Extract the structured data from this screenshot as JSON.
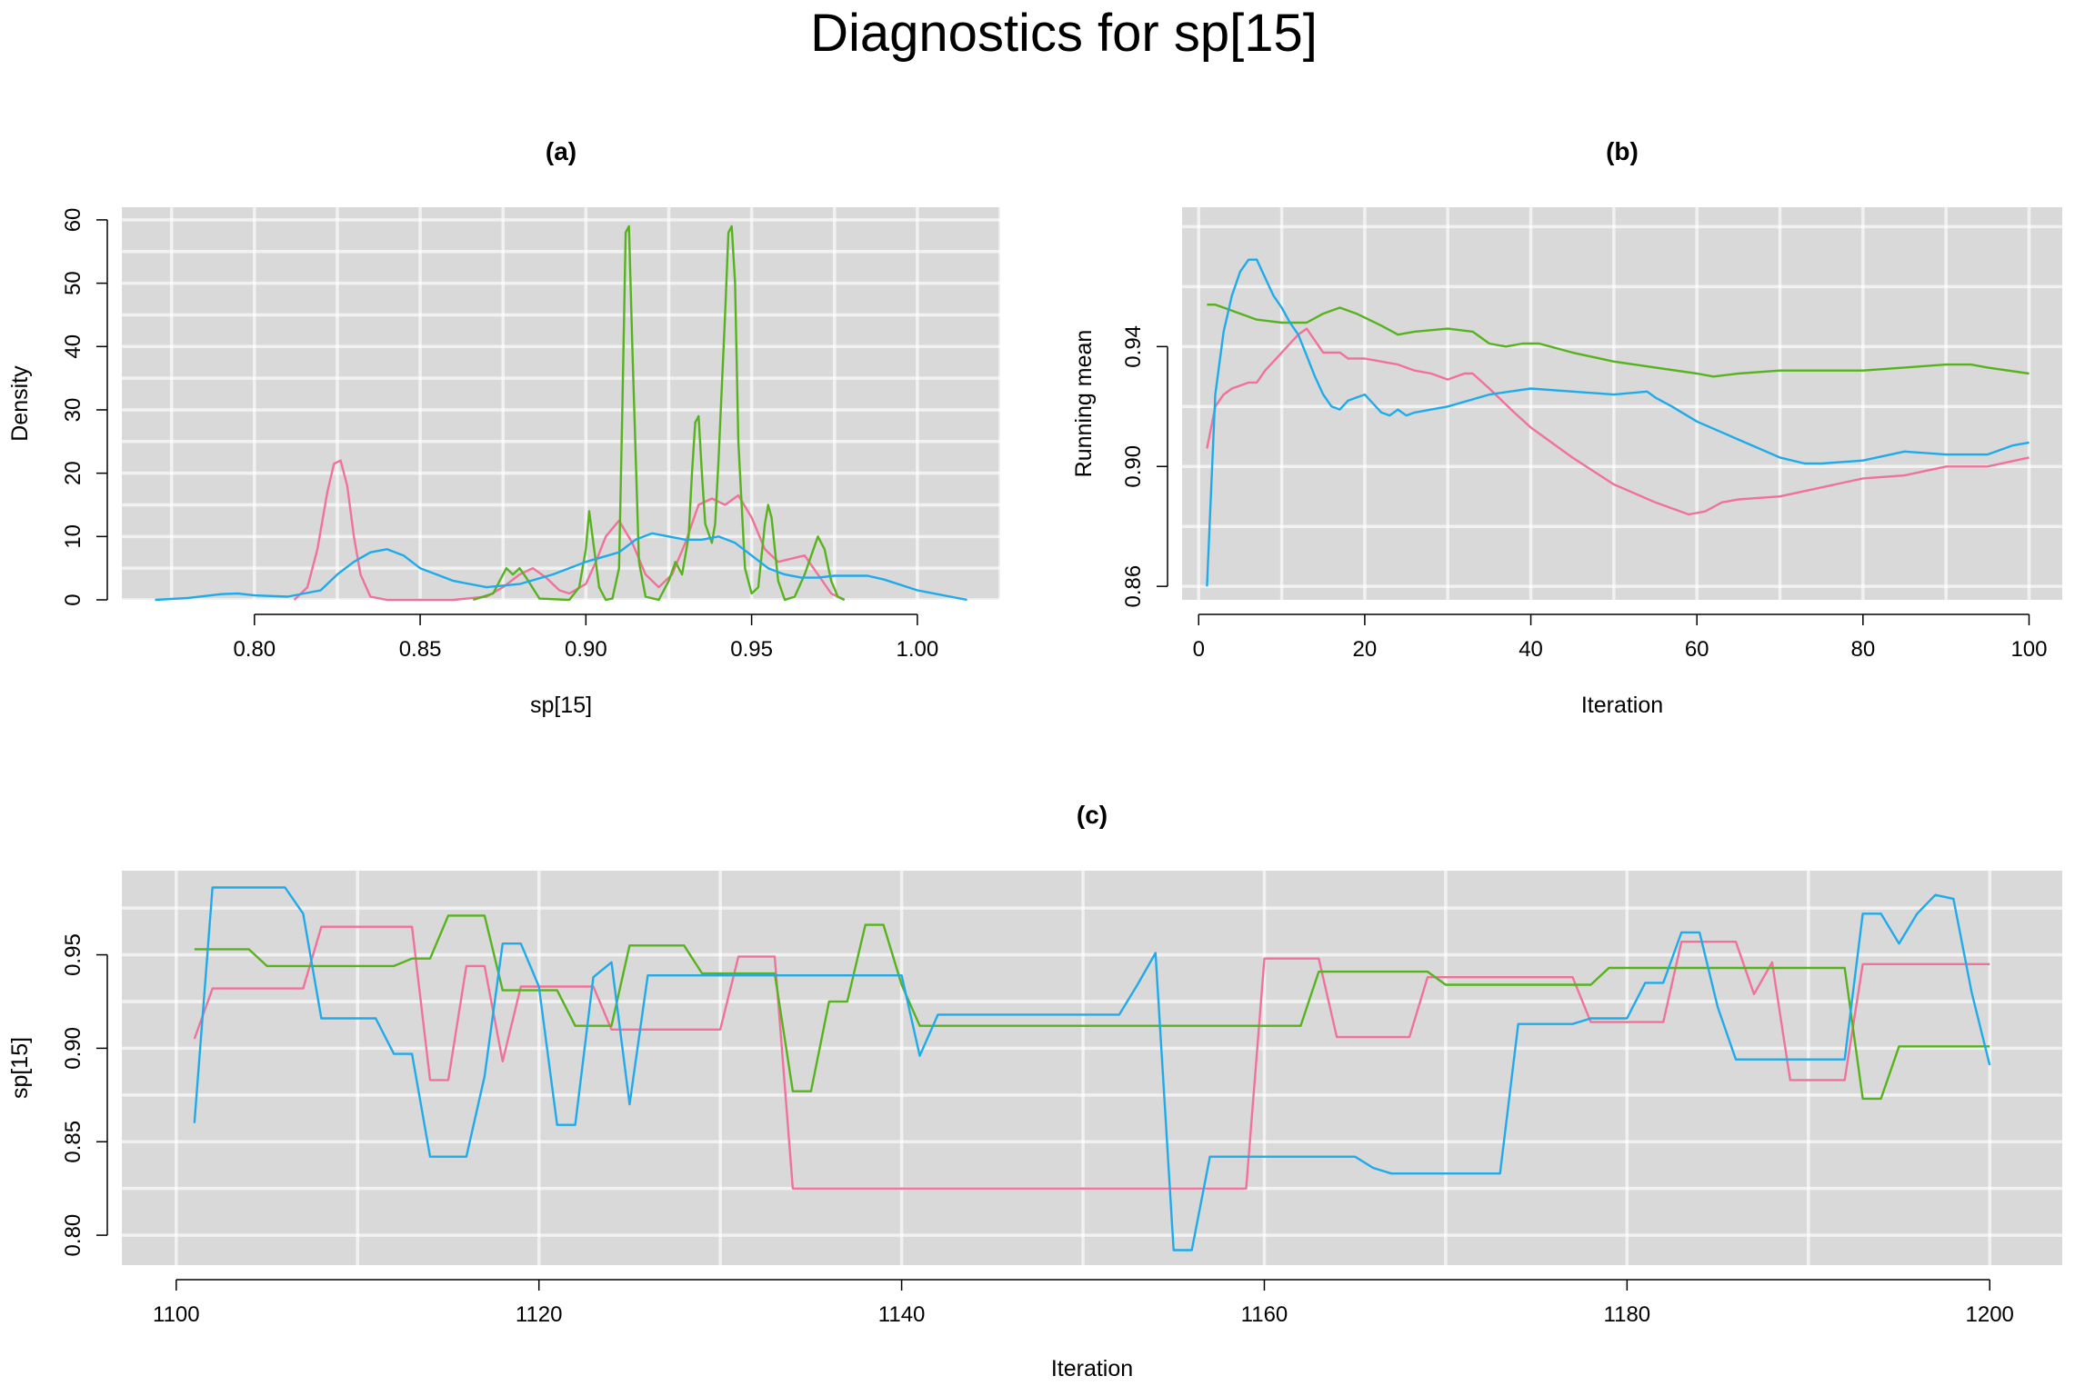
{
  "figure": {
    "title": "Diagnostics for sp[15]"
  },
  "colors": {
    "chain1": "#f0729a",
    "chain2": "#56b31e",
    "chain3": "#1fabea",
    "panel_bg": "#d9d9d9",
    "grid": "#ffffff"
  },
  "chart_data": [
    {
      "id": "a",
      "type": "line",
      "title": "(a)",
      "xlabel": "sp[15]",
      "ylabel": "Density",
      "xlim": [
        0.76,
        1.025
      ],
      "ylim": [
        0,
        62
      ],
      "xticks": [
        0.8,
        0.85,
        0.9,
        0.95,
        1.0
      ],
      "xtick_labels": [
        "0.80",
        "0.85",
        "0.90",
        "0.95",
        "1.00"
      ],
      "yticks": [
        0,
        10,
        20,
        30,
        40,
        50,
        60
      ],
      "ytick_labels": [
        "0",
        "10",
        "20",
        "30",
        "40",
        "50",
        "60"
      ],
      "grid": true,
      "series": [
        {
          "color": "#f0729a",
          "x": [
            0.812,
            0.816,
            0.819,
            0.822,
            0.824,
            0.826,
            0.828,
            0.83,
            0.832,
            0.835,
            0.84,
            0.86,
            0.87,
            0.875,
            0.88,
            0.884,
            0.888,
            0.892,
            0.895,
            0.9,
            0.903,
            0.906,
            0.91,
            0.914,
            0.918,
            0.922,
            0.926,
            0.93,
            0.934,
            0.938,
            0.942,
            0.946,
            0.95,
            0.954,
            0.958,
            0.962,
            0.966,
            0.97,
            0.974,
            0.978
          ],
          "y": [
            0,
            2,
            8,
            17,
            21.5,
            22,
            18,
            10,
            4,
            0.5,
            0,
            0,
            0.5,
            2,
            4,
            5,
            3.5,
            1.5,
            1,
            2.5,
            6,
            10,
            12.5,
            9,
            4,
            2,
            4,
            9,
            15,
            16,
            15,
            16.5,
            13,
            8,
            6,
            6.5,
            7,
            4,
            1,
            0
          ]
        },
        {
          "color": "#56b31e",
          "x": [
            0.866,
            0.872,
            0.875,
            0.876,
            0.878,
            0.88,
            0.882,
            0.886,
            0.895,
            0.898,
            0.9,
            0.901,
            0.902,
            0.904,
            0.906,
            0.908,
            0.91,
            0.911,
            0.912,
            0.913,
            0.914,
            0.916,
            0.918,
            0.922,
            0.925,
            0.927,
            0.929,
            0.931,
            0.932,
            0.933,
            0.934,
            0.935,
            0.936,
            0.938,
            0.939,
            0.94,
            0.942,
            0.943,
            0.944,
            0.945,
            0.946,
            0.948,
            0.95,
            0.952,
            0.954,
            0.955,
            0.956,
            0.958,
            0.96,
            0.963,
            0.966,
            0.968,
            0.97,
            0.972,
            0.974,
            0.976,
            0.978
          ],
          "y": [
            0,
            1,
            4,
            5,
            4,
            5,
            3.5,
            0.2,
            0,
            2,
            8,
            14,
            10,
            2,
            0,
            0.2,
            5,
            30,
            58,
            59,
            40,
            6,
            0.5,
            0,
            3,
            6,
            4,
            10,
            20,
            28,
            29,
            20,
            12,
            9,
            12,
            22,
            45,
            58,
            59,
            50,
            25,
            5,
            1,
            2,
            12,
            15,
            13,
            3,
            0,
            0.5,
            4,
            7,
            10,
            8,
            3,
            0.5,
            0
          ]
        },
        {
          "color": "#1fabea",
          "x": [
            0.77,
            0.78,
            0.79,
            0.795,
            0.8,
            0.81,
            0.82,
            0.825,
            0.83,
            0.835,
            0.84,
            0.845,
            0.85,
            0.86,
            0.87,
            0.88,
            0.89,
            0.9,
            0.91,
            0.915,
            0.92,
            0.925,
            0.93,
            0.935,
            0.94,
            0.945,
            0.95,
            0.955,
            0.96,
            0.965,
            0.97,
            0.975,
            0.98,
            0.985,
            0.99,
            1.0,
            1.01,
            1.015
          ],
          "y": [
            0,
            0.3,
            0.9,
            1,
            0.7,
            0.5,
            1.5,
            4,
            6,
            7.5,
            8,
            7,
            5,
            3,
            2,
            2.5,
            4,
            6,
            7.5,
            9.5,
            10.5,
            10,
            9.5,
            9.5,
            10,
            9,
            7,
            5,
            4,
            3.5,
            3.5,
            3.8,
            3.8,
            3.8,
            3.2,
            1.5,
            0.5,
            0
          ]
        }
      ]
    },
    {
      "id": "b",
      "type": "line",
      "title": "(b)",
      "xlabel": "Iteration",
      "ylabel": "Running mean",
      "xlim": [
        -2,
        104
      ],
      "ylim": [
        0.8555,
        0.9865
      ],
      "xticks": [
        0,
        20,
        40,
        60,
        80,
        100
      ],
      "xtick_labels": [
        "0",
        "20",
        "40",
        "60",
        "80",
        "100"
      ],
      "yticks": [
        0.86,
        0.9,
        0.94
      ],
      "ytick_labels": [
        "0.86",
        "0.90",
        "0.94"
      ],
      "grid": true,
      "series": [
        {
          "color": "#f0729a",
          "x": [
            1,
            2,
            3,
            4,
            5,
            6,
            7,
            8,
            9,
            10,
            11,
            12,
            13,
            14,
            15,
            16,
            17,
            18,
            19,
            20,
            22,
            24,
            26,
            28,
            30,
            32,
            33,
            35,
            38,
            40,
            45,
            50,
            55,
            59,
            61,
            63,
            65,
            70,
            75,
            80,
            85,
            90,
            95,
            100
          ],
          "y": [
            0.906,
            0.92,
            0.924,
            0.926,
            0.927,
            0.928,
            0.928,
            0.932,
            0.935,
            0.938,
            0.941,
            0.944,
            0.946,
            0.942,
            0.938,
            0.938,
            0.938,
            0.936,
            0.936,
            0.936,
            0.935,
            0.934,
            0.932,
            0.931,
            0.929,
            0.931,
            0.931,
            0.926,
            0.918,
            0.913,
            0.903,
            0.894,
            0.888,
            0.884,
            0.885,
            0.888,
            0.889,
            0.89,
            0.893,
            0.896,
            0.897,
            0.9,
            0.9,
            0.903
          ]
        },
        {
          "color": "#56b31e",
          "x": [
            1,
            2,
            3,
            5,
            7,
            10,
            13,
            15,
            17,
            19,
            22,
            24,
            26,
            30,
            33,
            35,
            37,
            39,
            41,
            45,
            50,
            55,
            60,
            62,
            65,
            70,
            75,
            80,
            85,
            90,
            93,
            95,
            100
          ],
          "y": [
            0.954,
            0.954,
            0.953,
            0.951,
            0.949,
            0.948,
            0.948,
            0.951,
            0.953,
            0.951,
            0.947,
            0.944,
            0.945,
            0.946,
            0.945,
            0.941,
            0.94,
            0.941,
            0.941,
            0.938,
            0.935,
            0.933,
            0.931,
            0.93,
            0.931,
            0.932,
            0.932,
            0.932,
            0.933,
            0.934,
            0.934,
            0.933,
            0.931
          ]
        },
        {
          "color": "#1fabea",
          "x": [
            1,
            2,
            3,
            4,
            5,
            6,
            7,
            8,
            9,
            10,
            11,
            12,
            13,
            14,
            15,
            16,
            17,
            18,
            19,
            20,
            21,
            22,
            23,
            24,
            25,
            26,
            28,
            30,
            35,
            40,
            45,
            50,
            54,
            55,
            57,
            60,
            65,
            70,
            73,
            75,
            80,
            85,
            90,
            95,
            98,
            100
          ],
          "y": [
            0.86,
            0.924,
            0.945,
            0.957,
            0.965,
            0.969,
            0.969,
            0.963,
            0.957,
            0.953,
            0.948,
            0.944,
            0.937,
            0.93,
            0.924,
            0.92,
            0.919,
            0.922,
            0.923,
            0.924,
            0.921,
            0.918,
            0.917,
            0.919,
            0.917,
            0.918,
            0.919,
            0.92,
            0.924,
            0.926,
            0.925,
            0.924,
            0.925,
            0.923,
            0.92,
            0.915,
            0.909,
            0.903,
            0.901,
            0.901,
            0.902,
            0.905,
            0.904,
            0.904,
            0.907,
            0.908
          ]
        }
      ]
    },
    {
      "id": "c",
      "type": "line",
      "title": "(c)",
      "xlabel": "Iteration",
      "ylabel": "sp[15]",
      "xlim": [
        1097,
        1204
      ],
      "ylim": [
        0.784,
        0.995
      ],
      "xticks": [
        1100,
        1120,
        1140,
        1160,
        1180,
        1200
      ],
      "xtick_labels": [
        "1100",
        "1120",
        "1140",
        "1160",
        "1180",
        "1200"
      ],
      "yticks": [
        0.8,
        0.85,
        0.9,
        0.95
      ],
      "ytick_labels": [
        "0.80",
        "0.85",
        "0.90",
        "0.95"
      ],
      "grid": true,
      "series": [
        {
          "color": "#f0729a",
          "x": [
            1101,
            1102,
            1107,
            1108,
            1113,
            1114,
            1115,
            1116,
            1117,
            1118,
            1119,
            1120,
            1123,
            1124,
            1130,
            1131,
            1133,
            1134,
            1159,
            1160,
            1163,
            1164,
            1168,
            1169,
            1177,
            1178,
            1182,
            1183,
            1186,
            1187,
            1188,
            1189,
            1192,
            1193,
            1200
          ],
          "y": [
            0.905,
            0.932,
            0.932,
            0.965,
            0.965,
            0.883,
            0.883,
            0.944,
            0.944,
            0.893,
            0.933,
            0.933,
            0.933,
            0.91,
            0.91,
            0.949,
            0.949,
            0.825,
            0.825,
            0.948,
            0.948,
            0.906,
            0.906,
            0.938,
            0.938,
            0.914,
            0.914,
            0.957,
            0.957,
            0.929,
            0.946,
            0.883,
            0.883,
            0.945,
            0.945
          ]
        },
        {
          "color": "#56b31e",
          "x": [
            1101,
            1104,
            1105,
            1112,
            1113,
            1114,
            1115,
            1117,
            1118,
            1121,
            1122,
            1124,
            1125,
            1128,
            1129,
            1133,
            1134,
            1135,
            1136,
            1137,
            1138,
            1139,
            1140,
            1141,
            1162,
            1163,
            1169,
            1170,
            1178,
            1179,
            1192,
            1193,
            1194,
            1195,
            1200
          ],
          "y": [
            0.953,
            0.953,
            0.944,
            0.944,
            0.948,
            0.948,
            0.971,
            0.971,
            0.931,
            0.931,
            0.912,
            0.912,
            0.955,
            0.955,
            0.94,
            0.94,
            0.877,
            0.877,
            0.925,
            0.925,
            0.966,
            0.966,
            0.934,
            0.912,
            0.912,
            0.941,
            0.941,
            0.934,
            0.934,
            0.943,
            0.943,
            0.873,
            0.873,
            0.901,
            0.901
          ]
        },
        {
          "color": "#1fabea",
          "x": [
            1101,
            1102,
            1106,
            1107,
            1108,
            1111,
            1112,
            1113,
            1114,
            1116,
            1117,
            1118,
            1119,
            1120,
            1121,
            1122,
            1123,
            1124,
            1125,
            1126,
            1140,
            1141,
            1142,
            1152,
            1153,
            1154,
            1155,
            1156,
            1157,
            1165,
            1166,
            1167,
            1173,
            1174,
            1177,
            1178,
            1180,
            1181,
            1182,
            1183,
            1184,
            1185,
            1186,
            1192,
            1193,
            1194,
            1195,
            1196,
            1197,
            1198,
            1199,
            1200
          ],
          "y": [
            0.86,
            0.986,
            0.986,
            0.972,
            0.916,
            0.916,
            0.897,
            0.897,
            0.842,
            0.842,
            0.885,
            0.956,
            0.956,
            0.933,
            0.859,
            0.859,
            0.938,
            0.946,
            0.87,
            0.939,
            0.939,
            0.896,
            0.918,
            0.918,
            0.934,
            0.951,
            0.792,
            0.792,
            0.842,
            0.842,
            0.836,
            0.833,
            0.833,
            0.913,
            0.913,
            0.916,
            0.916,
            0.935,
            0.935,
            0.962,
            0.962,
            0.922,
            0.894,
            0.894,
            0.972,
            0.972,
            0.956,
            0.972,
            0.982,
            0.98,
            0.93,
            0.891
          ]
        }
      ]
    }
  ]
}
